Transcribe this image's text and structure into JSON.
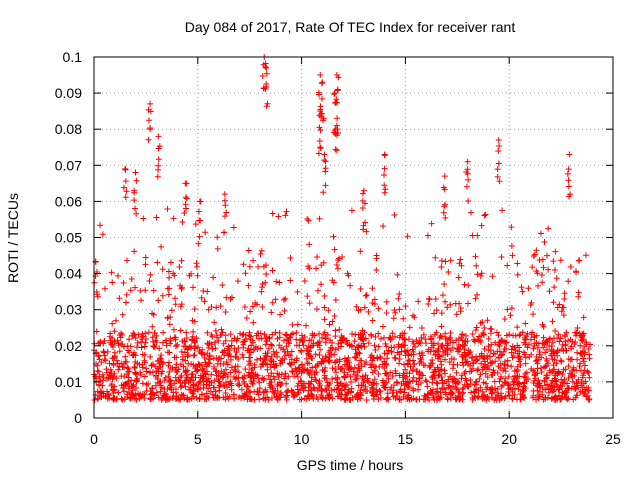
{
  "chart_data": {
    "type": "scatter",
    "title": "Day 084 of 2017, Rate Of TEC Index for receiver rant",
    "xlabel": "GPS time / hours",
    "ylabel": "ROTI / TECUs",
    "xlim": [
      0,
      25
    ],
    "ylim": [
      0,
      0.1
    ],
    "x_ticks": [
      0,
      5,
      10,
      15,
      20,
      25
    ],
    "x_tick_labels": [
      "0",
      "5",
      "10",
      "15",
      "20",
      "25"
    ],
    "y_ticks": [
      0,
      0.01,
      0.02,
      0.03,
      0.04,
      0.05,
      0.06,
      0.07,
      0.08,
      0.09,
      0.1
    ],
    "y_tick_labels": [
      "0",
      "0.01",
      "0.02",
      "0.03",
      "0.04",
      "0.05",
      "0.06",
      "0.07",
      "0.08",
      "0.09",
      "0.1"
    ],
    "grid": true,
    "marker": "+",
    "series": [
      {
        "name": "ROTI",
        "color": "#ff0000",
        "x_range": [
          0,
          23.9
        ],
        "typical_range": [
          0.005,
          0.03
        ],
        "notable_points": [
          {
            "x": 8.2,
            "y": 0.1
          },
          {
            "x": 8.3,
            "y": 0.097
          },
          {
            "x": 10.9,
            "y": 0.095
          },
          {
            "x": 11.7,
            "y": 0.095
          },
          {
            "x": 11.0,
            "y": 0.093
          },
          {
            "x": 11.6,
            "y": 0.09
          },
          {
            "x": 2.7,
            "y": 0.087
          },
          {
            "x": 10.9,
            "y": 0.085
          },
          {
            "x": 11.7,
            "y": 0.081
          },
          {
            "x": 3.1,
            "y": 0.078
          },
          {
            "x": 19.5,
            "y": 0.077
          },
          {
            "x": 11.1,
            "y": 0.073
          },
          {
            "x": 14.0,
            "y": 0.073
          },
          {
            "x": 22.9,
            "y": 0.073
          },
          {
            "x": 18.0,
            "y": 0.071
          },
          {
            "x": 1.5,
            "y": 0.069
          },
          {
            "x": 2.0,
            "y": 0.068
          },
          {
            "x": 16.9,
            "y": 0.067
          },
          {
            "x": 4.4,
            "y": 0.065
          },
          {
            "x": 13.0,
            "y": 0.063
          },
          {
            "x": 6.3,
            "y": 0.062
          },
          {
            "x": 5.1,
            "y": 0.06
          }
        ]
      }
    ]
  }
}
